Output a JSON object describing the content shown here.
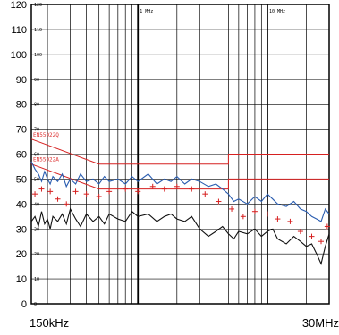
{
  "chart_data": {
    "type": "line",
    "xscale": "log",
    "xlim_mhz": [
      0.15,
      30
    ],
    "ylim": [
      0,
      120
    ],
    "yticks": [
      0,
      10,
      20,
      30,
      40,
      50,
      60,
      70,
      80,
      90,
      100,
      110,
      120
    ],
    "yinner_labels": [
      "120",
      "110",
      "100",
      "90",
      "80",
      "70",
      "60",
      "50",
      "40",
      "30",
      "20",
      "10",
      "0"
    ],
    "x_corner_labels": {
      "left": "150kHz",
      "right": "30MHz"
    },
    "x_top_labels": [
      {
        "text": "1 MHz",
        "x": 1
      },
      {
        "text": "10 MHz",
        "x": 10
      }
    ],
    "grid": true,
    "limit_labels": [
      "EN55022Q",
      "EN55022A"
    ],
    "series": [
      {
        "color": "#d62020",
        "x": [
          0.15,
          0.5,
          0.5,
          5,
          5,
          30
        ],
        "y": [
          66,
          56,
          56,
          56,
          60,
          60
        ]
      },
      {
        "color": "#d62020",
        "x": [
          0.15,
          0.5,
          0.5,
          5,
          5,
          30
        ],
        "y": [
          56,
          46,
          46,
          46,
          50,
          50
        ]
      },
      {
        "color": "#2a5db0",
        "x": [
          0.15,
          0.16,
          0.17,
          0.18,
          0.19,
          0.2,
          0.21,
          0.22,
          0.24,
          0.26,
          0.28,
          0.3,
          0.33,
          0.36,
          0.4,
          0.45,
          0.5,
          0.55,
          0.6,
          0.7,
          0.8,
          0.9,
          1.0,
          1.2,
          1.4,
          1.6,
          1.8,
          2.0,
          2.3,
          2.6,
          3.0,
          3.5,
          4.0,
          4.5,
          5.0,
          5.5,
          6.0,
          7.0,
          8.0,
          9.0,
          10,
          11,
          12,
          14,
          16,
          18,
          20,
          22,
          24,
          26,
          28,
          30
        ],
        "y": [
          57,
          54,
          52,
          49,
          53,
          50,
          48,
          51,
          49,
          52,
          47,
          50,
          48,
          52,
          49,
          50,
          48,
          51,
          49,
          50,
          48,
          51,
          49,
          52,
          48,
          50,
          49,
          51,
          48,
          50,
          49,
          47,
          48,
          46,
          44,
          41,
          42,
          40,
          43,
          41,
          44,
          42,
          40,
          39,
          41,
          38,
          37,
          35,
          34,
          33,
          38,
          36
        ]
      },
      {
        "color": "#111111",
        "x": [
          0.15,
          0.16,
          0.17,
          0.18,
          0.19,
          0.2,
          0.21,
          0.22,
          0.24,
          0.26,
          0.28,
          0.3,
          0.33,
          0.36,
          0.4,
          0.45,
          0.5,
          0.55,
          0.6,
          0.7,
          0.8,
          0.9,
          1.0,
          1.2,
          1.4,
          1.6,
          1.8,
          2.0,
          2.3,
          2.6,
          3.0,
          3.5,
          4.0,
          4.5,
          5.0,
          5.5,
          6.0,
          7.0,
          8.0,
          9.0,
          10,
          11,
          12,
          14,
          16,
          18,
          20,
          22,
          24,
          26,
          28,
          30
        ],
        "y": [
          33,
          35,
          31,
          37,
          32,
          34,
          30,
          35,
          33,
          36,
          32,
          38,
          34,
          31,
          36,
          33,
          35,
          32,
          36,
          34,
          33,
          37,
          35,
          36,
          33,
          35,
          36,
          34,
          33,
          35,
          30,
          27,
          29,
          31,
          28,
          26,
          29,
          28,
          30,
          27,
          29,
          30,
          26,
          24,
          27,
          25,
          23,
          24,
          20,
          16,
          23,
          28
        ]
      }
    ],
    "markers": [
      {
        "x": 0.16,
        "y": 44
      },
      {
        "x": 0.18,
        "y": 46
      },
      {
        "x": 0.21,
        "y": 45
      },
      {
        "x": 0.24,
        "y": 42
      },
      {
        "x": 0.28,
        "y": 40
      },
      {
        "x": 0.33,
        "y": 45
      },
      {
        "x": 0.4,
        "y": 44
      },
      {
        "x": 0.5,
        "y": 43
      },
      {
        "x": 0.6,
        "y": 45
      },
      {
        "x": 0.8,
        "y": 46
      },
      {
        "x": 1.0,
        "y": 45
      },
      {
        "x": 1.3,
        "y": 47
      },
      {
        "x": 1.6,
        "y": 46
      },
      {
        "x": 2.0,
        "y": 47
      },
      {
        "x": 2.6,
        "y": 46
      },
      {
        "x": 3.3,
        "y": 44
      },
      {
        "x": 4.2,
        "y": 41
      },
      {
        "x": 5.3,
        "y": 38
      },
      {
        "x": 6.5,
        "y": 35
      },
      {
        "x": 8.0,
        "y": 37
      },
      {
        "x": 10,
        "y": 36
      },
      {
        "x": 12,
        "y": 34
      },
      {
        "x": 15,
        "y": 33
      },
      {
        "x": 18,
        "y": 29
      },
      {
        "x": 22,
        "y": 27
      },
      {
        "x": 26,
        "y": 25
      },
      {
        "x": 29,
        "y": 31
      }
    ]
  }
}
